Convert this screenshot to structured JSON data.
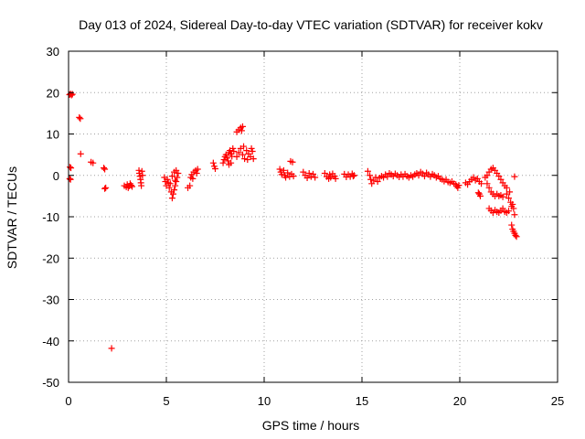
{
  "chart_data": {
    "type": "scatter",
    "title": "Day 013 of 2024, Sidereal Day-to-day VTEC variation (SDTVAR) for receiver kokv",
    "xlabel": "GPS time / hours",
    "ylabel": "SDTVAR / TECUs",
    "xlim": [
      0,
      25
    ],
    "ylim": [
      -50,
      30
    ],
    "xticks": [
      "0",
      "5",
      "10",
      "15",
      "20",
      "25"
    ],
    "yticks": [
      "30",
      "20",
      "10",
      "0",
      "-10",
      "-20",
      "-30",
      "-40",
      "-50"
    ],
    "grid": true,
    "marker": "+",
    "colors": {
      "points": "#ff0000"
    },
    "series": [
      {
        "name": "SDTVAR",
        "points": [
          [
            0.05,
            19.5
          ],
          [
            0.1,
            19.7
          ],
          [
            0.15,
            19.4
          ],
          [
            0.2,
            19.6
          ],
          [
            0.07,
            2.0
          ],
          [
            0.12,
            1.8
          ],
          [
            0.06,
            -0.8
          ],
          [
            0.1,
            -1.0
          ],
          [
            0.55,
            14.0
          ],
          [
            0.6,
            13.7
          ],
          [
            0.62,
            5.2
          ],
          [
            1.15,
            3.2
          ],
          [
            1.25,
            3.0
          ],
          [
            1.8,
            1.8
          ],
          [
            1.85,
            1.5
          ],
          [
            1.9,
            -3.0
          ],
          [
            1.85,
            -3.2
          ],
          [
            2.2,
            -41.8
          ],
          [
            2.85,
            -2.5
          ],
          [
            2.95,
            -2.8
          ],
          [
            3.0,
            -2.2
          ],
          [
            3.05,
            -3.0
          ],
          [
            3.1,
            -2.6
          ],
          [
            3.15,
            -2.0
          ],
          [
            3.2,
            -2.4
          ],
          [
            3.25,
            -2.7
          ],
          [
            3.6,
            1.2
          ],
          [
            3.62,
            0.5
          ],
          [
            3.65,
            -0.2
          ],
          [
            3.68,
            -1.0
          ],
          [
            3.7,
            -1.8
          ],
          [
            3.72,
            -2.5
          ],
          [
            3.75,
            1.0
          ],
          [
            3.78,
            0.0
          ],
          [
            4.9,
            -0.5
          ],
          [
            4.95,
            -1.5
          ],
          [
            5.0,
            -2.5
          ],
          [
            5.05,
            -1.0
          ],
          [
            5.1,
            -1.8
          ],
          [
            5.15,
            -3.0
          ],
          [
            5.2,
            -2.0
          ],
          [
            5.25,
            -4.0
          ],
          [
            5.3,
            -5.5
          ],
          [
            5.35,
            -4.5
          ],
          [
            5.4,
            -3.5
          ],
          [
            5.45,
            -2.5
          ],
          [
            5.5,
            -1.5
          ],
          [
            5.55,
            -0.5
          ],
          [
            5.6,
            0.5
          ],
          [
            5.3,
            -0.2
          ],
          [
            5.4,
            0.8
          ],
          [
            5.5,
            1.2
          ],
          [
            5.45,
            -1.2
          ],
          [
            6.1,
            -3.0
          ],
          [
            6.2,
            -2.5
          ],
          [
            6.25,
            -0.5
          ],
          [
            6.3,
            0.2
          ],
          [
            6.4,
            0.8
          ],
          [
            6.5,
            1.2
          ],
          [
            6.55,
            0.5
          ],
          [
            6.6,
            1.5
          ],
          [
            6.35,
            -0.8
          ],
          [
            7.4,
            3.0
          ],
          [
            7.45,
            2.2
          ],
          [
            7.5,
            1.6
          ],
          [
            7.9,
            3.0
          ],
          [
            7.95,
            3.8
          ],
          [
            8.0,
            4.5
          ],
          [
            8.05,
            5.0
          ],
          [
            8.1,
            4.2
          ],
          [
            8.15,
            3.5
          ],
          [
            8.2,
            5.5
          ],
          [
            8.25,
            6.0
          ],
          [
            8.3,
            5.2
          ],
          [
            8.35,
            4.6
          ],
          [
            8.4,
            6.5
          ],
          [
            8.45,
            5.8
          ],
          [
            8.3,
            3.0
          ],
          [
            8.2,
            2.6
          ],
          [
            8.6,
            10.5
          ],
          [
            8.7,
            11.0
          ],
          [
            8.8,
            11.5
          ],
          [
            8.9,
            11.8
          ],
          [
            8.85,
            10.8
          ],
          [
            8.6,
            4.5
          ],
          [
            8.7,
            5.5
          ],
          [
            8.8,
            6.5
          ],
          [
            8.9,
            5.0
          ],
          [
            9.0,
            4.0
          ],
          [
            9.1,
            6.0
          ],
          [
            9.2,
            5.2
          ],
          [
            9.3,
            4.5
          ],
          [
            9.35,
            6.5
          ],
          [
            9.4,
            5.8
          ],
          [
            9.45,
            4.0
          ],
          [
            8.95,
            7.0
          ],
          [
            9.15,
            3.8
          ],
          [
            10.8,
            1.5
          ],
          [
            10.85,
            0.8
          ],
          [
            10.9,
            0.2
          ],
          [
            11.0,
            1.2
          ],
          [
            11.05,
            0.0
          ],
          [
            11.1,
            -0.5
          ],
          [
            11.2,
            0.6
          ],
          [
            11.3,
            -0.3
          ],
          [
            11.4,
            0.3
          ],
          [
            11.5,
            -0.2
          ],
          [
            11.45,
            3.2
          ],
          [
            11.35,
            3.4
          ],
          [
            12.0,
            0.8
          ],
          [
            12.1,
            0.0
          ],
          [
            12.2,
            -0.6
          ],
          [
            12.3,
            0.5
          ],
          [
            12.4,
            -0.3
          ],
          [
            12.5,
            0.3
          ],
          [
            12.6,
            -0.5
          ],
          [
            13.1,
            0.5
          ],
          [
            13.2,
            -0.3
          ],
          [
            13.3,
            -0.8
          ],
          [
            13.35,
            0.2
          ],
          [
            13.4,
            -0.5
          ],
          [
            13.5,
            0.4
          ],
          [
            13.6,
            -0.2
          ],
          [
            13.65,
            -0.8
          ],
          [
            14.1,
            0.3
          ],
          [
            14.2,
            -0.4
          ],
          [
            14.3,
            0.2
          ],
          [
            14.4,
            -0.3
          ],
          [
            14.5,
            0.4
          ],
          [
            14.55,
            -0.2
          ],
          [
            14.6,
            0.0
          ],
          [
            15.3,
            1.0
          ],
          [
            15.4,
            0.0
          ],
          [
            15.45,
            -1.0
          ],
          [
            15.5,
            -2.0
          ],
          [
            15.6,
            -1.2
          ],
          [
            15.7,
            -0.5
          ],
          [
            15.8,
            -1.5
          ],
          [
            15.9,
            -0.6
          ],
          [
            16.0,
            -0.2
          ],
          [
            16.1,
            -0.5
          ],
          [
            16.2,
            0.2
          ],
          [
            16.3,
            -0.3
          ],
          [
            16.4,
            0.5
          ],
          [
            16.5,
            0.2
          ],
          [
            16.6,
            -0.2
          ],
          [
            16.7,
            0.4
          ],
          [
            16.8,
            0.0
          ],
          [
            16.9,
            -0.4
          ],
          [
            17.0,
            0.2
          ],
          [
            17.1,
            -0.3
          ],
          [
            17.2,
            0.3
          ],
          [
            17.3,
            -0.2
          ],
          [
            17.4,
            -0.5
          ],
          [
            17.5,
            0.0
          ],
          [
            17.6,
            -0.3
          ],
          [
            17.7,
            0.2
          ],
          [
            17.8,
            0.5
          ],
          [
            17.9,
            0.0
          ],
          [
            18.0,
            0.8
          ],
          [
            18.1,
            0.4
          ],
          [
            18.2,
            -0.2
          ],
          [
            18.3,
            0.6
          ],
          [
            18.4,
            0.2
          ],
          [
            18.5,
            -0.3
          ],
          [
            18.6,
            0.3
          ],
          [
            18.7,
            0.0
          ],
          [
            18.8,
            -0.5
          ],
          [
            18.9,
            -0.2
          ],
          [
            19.0,
            -0.8
          ],
          [
            19.1,
            -1.0
          ],
          [
            19.2,
            -1.4
          ],
          [
            19.3,
            -1.0
          ],
          [
            19.4,
            -1.6
          ],
          [
            19.5,
            -1.8
          ],
          [
            19.6,
            -1.5
          ],
          [
            19.7,
            -2.0
          ],
          [
            19.8,
            -2.2
          ],
          [
            19.85,
            -2.6
          ],
          [
            19.9,
            -3.0
          ],
          [
            19.95,
            -2.4
          ],
          [
            20.3,
            -1.8
          ],
          [
            20.4,
            -2.2
          ],
          [
            20.5,
            -1.5
          ],
          [
            20.6,
            -1.0
          ],
          [
            20.7,
            -0.5
          ],
          [
            20.8,
            -1.2
          ],
          [
            20.9,
            -0.8
          ],
          [
            21.0,
            -1.5
          ],
          [
            21.1,
            -2.0
          ],
          [
            21.0,
            -4.5
          ],
          [
            21.05,
            -5.0
          ],
          [
            20.95,
            -4.2
          ],
          [
            21.3,
            -0.5
          ],
          [
            21.4,
            0.0
          ],
          [
            21.5,
            0.8
          ],
          [
            21.6,
            1.5
          ],
          [
            21.7,
            1.8
          ],
          [
            21.8,
            1.2
          ],
          [
            21.9,
            0.5
          ],
          [
            22.0,
            -0.2
          ],
          [
            22.1,
            -1.0
          ],
          [
            22.2,
            -1.8
          ],
          [
            22.3,
            -2.5
          ],
          [
            22.4,
            -3.0
          ],
          [
            21.4,
            -2.0
          ],
          [
            21.5,
            -3.0
          ],
          [
            21.6,
            -4.0
          ],
          [
            21.7,
            -4.5
          ],
          [
            21.8,
            -5.0
          ],
          [
            21.9,
            -4.5
          ],
          [
            22.0,
            -5.0
          ],
          [
            22.1,
            -4.8
          ],
          [
            22.2,
            -5.2
          ],
          [
            21.5,
            -8.0
          ],
          [
            21.6,
            -8.5
          ],
          [
            21.7,
            -9.0
          ],
          [
            21.8,
            -8.4
          ],
          [
            21.9,
            -8.8
          ],
          [
            22.0,
            -9.0
          ],
          [
            22.1,
            -8.5
          ],
          [
            22.2,
            -8.0
          ],
          [
            22.3,
            -8.8
          ],
          [
            22.4,
            -9.0
          ],
          [
            22.5,
            -8.6
          ],
          [
            22.4,
            -4.5
          ],
          [
            22.5,
            -5.5
          ],
          [
            22.6,
            -6.5
          ],
          [
            22.65,
            -7.5
          ],
          [
            22.7,
            -7.0
          ],
          [
            22.75,
            -8.0
          ],
          [
            22.8,
            -9.5
          ],
          [
            22.55,
            -4.0
          ],
          [
            22.65,
            -12.0
          ],
          [
            22.7,
            -13.0
          ],
          [
            22.75,
            -13.5
          ],
          [
            22.8,
            -14.0
          ],
          [
            22.85,
            -14.5
          ],
          [
            22.9,
            -14.8
          ],
          [
            22.8,
            -0.3
          ]
        ]
      }
    ]
  }
}
